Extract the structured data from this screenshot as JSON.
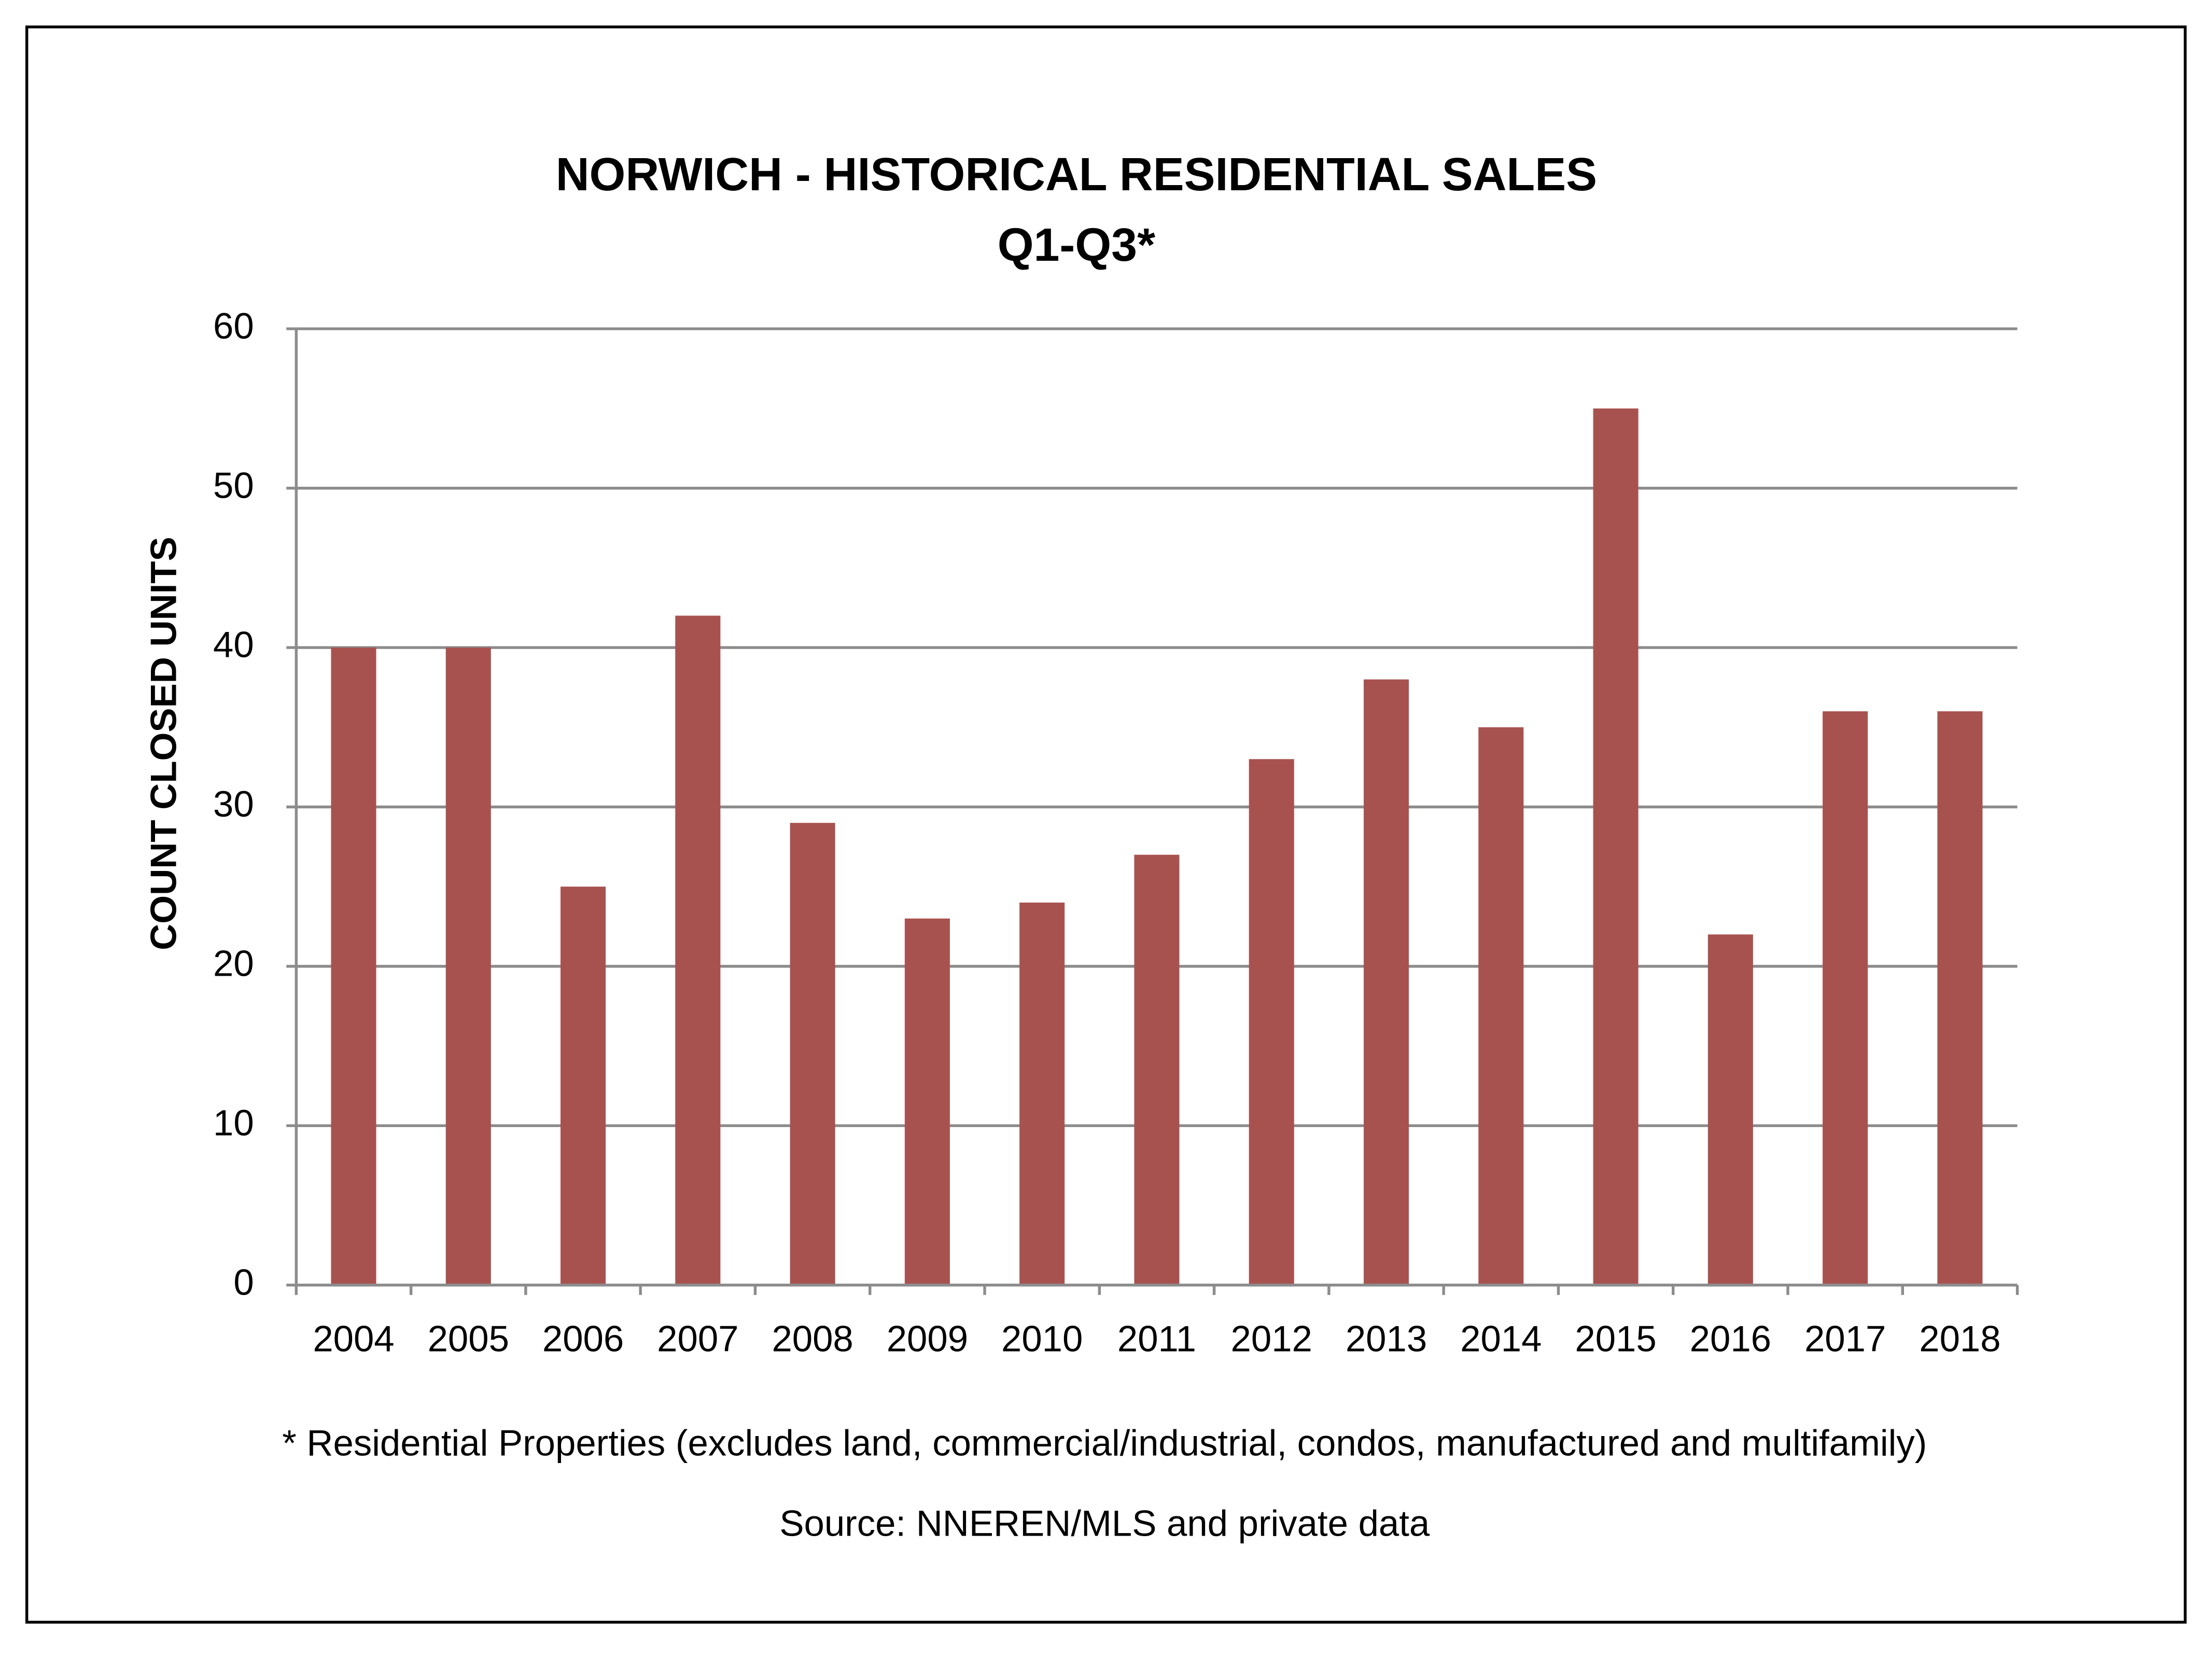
{
  "chart_data": {
    "type": "bar",
    "title": "NORWICH - HISTORICAL RESIDENTIAL SALES",
    "subtitle": "Q1-Q3*",
    "y_label": "COUNT CLOSED UNITS",
    "categories": [
      "2004",
      "2005",
      "2006",
      "2007",
      "2008",
      "2009",
      "2010",
      "2011",
      "2012",
      "2013",
      "2014",
      "2015",
      "2016",
      "2017",
      "2018"
    ],
    "values": [
      40,
      40,
      25,
      42,
      29,
      23,
      24,
      27,
      33,
      38,
      35,
      55,
      22,
      36,
      36
    ],
    "color": "#a85250",
    "ylim": [
      0,
      60
    ],
    "yticks": [
      0,
      10,
      20,
      30,
      40,
      50,
      60
    ],
    "grid": true,
    "footnote": "* Residential Properties (excludes land, commercial/industrial, condos, manufactured and multifamily)",
    "source": "Source: NNEREN/MLS and private data"
  }
}
